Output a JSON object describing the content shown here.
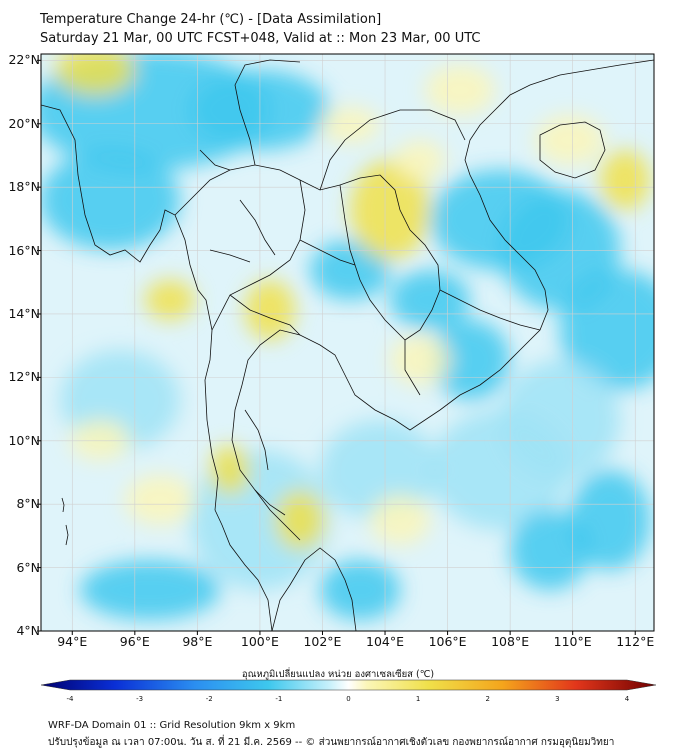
{
  "header": {
    "title": "Temperature Change 24-hr (℃) - [Data Assimilation]",
    "subtitle": "Saturday 21 Mar, 00 UTC FCST+048, Valid at :: Mon 23 Mar, 00 UTC"
  },
  "map": {
    "lat_labels": [
      "22°N",
      "20°N",
      "18°N",
      "16°N",
      "14°N",
      "12°N",
      "10°N",
      "8°N",
      "6°N",
      "4°N"
    ],
    "lon_labels": [
      "94°E",
      "96°E",
      "98°E",
      "100°E",
      "102°E",
      "104°E",
      "106°E",
      "108°E",
      "110°E",
      "112°E"
    ],
    "lat_range": [
      4,
      22.2
    ],
    "lon_range": [
      93,
      112.6
    ],
    "colors": {
      "cool": "#3ec8ee",
      "cool_light": "#9fe3f6",
      "warm": "#f0e04a",
      "warm_light": "#fbf6b8",
      "border": "#111111",
      "grid": "#d0d0d0"
    }
  },
  "colorbar": {
    "title": "อุณหภูมิเปลี่ยนแปลง หน่วย องศาเซลเซียส (℃)",
    "ticks": [
      "-4",
      "-3",
      "-2",
      "-1",
      "0",
      "1",
      "2",
      "3",
      "4"
    ],
    "range": [
      -4,
      4
    ]
  },
  "footer": {
    "line1": "WRF-DA Domain 01 :: Grid Resolution 9km x 9km",
    "line2": "ปรับปรุงข้อมูล ณ เวลา 07:00น. วัน ส. ที่ 21 มี.ค. 2569 -- © ส่วนพยากรณ์อากาศเชิงตัวเลข กองพยากรณ์อากาศ กรมอุตุนิยมวิทยา"
  }
}
